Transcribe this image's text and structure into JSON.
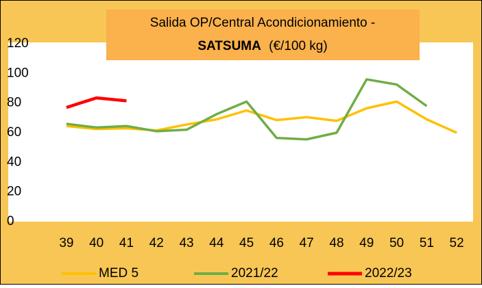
{
  "chart_data": {
    "type": "line",
    "title_line1": "Salida OP/Central Acondicionamiento -",
    "title_bold": "SATSUMA",
    "title_rest": "(€/100 kg)",
    "categories": [
      "39",
      "40",
      "41",
      "42",
      "43",
      "44",
      "45",
      "46",
      "47",
      "48",
      "49",
      "50",
      "51",
      "52"
    ],
    "series": [
      {
        "name": "MED 5",
        "color": "#ffc000",
        "values": [
          64.5,
          62.5,
          63,
          61.5,
          65.5,
          69,
          75,
          68.5,
          70.5,
          68,
          76.5,
          81,
          69,
          60
        ]
      },
      {
        "name": "2021/22",
        "color": "#70ad47",
        "values": [
          66,
          63.5,
          64.5,
          61,
          62,
          72.5,
          81,
          56.5,
          55.5,
          60,
          96,
          92.5,
          78,
          null
        ]
      },
      {
        "name": "2022/23",
        "color": "#ff0000",
        "values": [
          77,
          83.5,
          81.5,
          null,
          null,
          null,
          null,
          null,
          null,
          null,
          null,
          null,
          null,
          null
        ]
      }
    ],
    "ylim": [
      0,
      120
    ],
    "yticks": [
      0,
      20,
      40,
      60,
      80,
      100,
      120
    ],
    "grid": false,
    "legend": "bottom"
  }
}
